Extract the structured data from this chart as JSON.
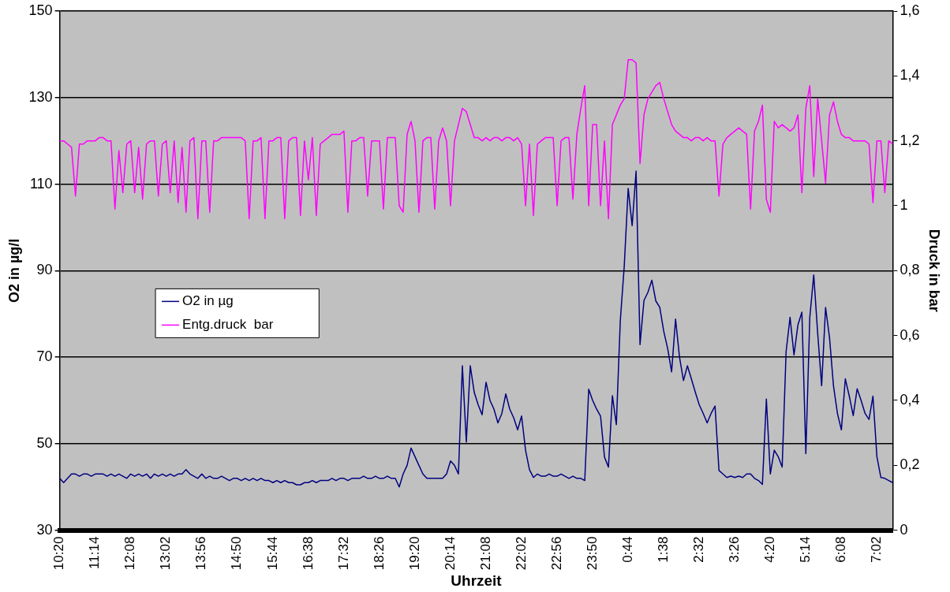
{
  "chart_data": {
    "type": "line",
    "xlabel": "Uhrzeit",
    "ylabel": "O2 in µg/l",
    "y2label": "Druck in bar",
    "categories": [
      "10:20",
      null,
      null,
      null,
      null,
      null,
      null,
      null,
      null,
      "11:14",
      null,
      null,
      null,
      null,
      null,
      null,
      null,
      null,
      "12:08",
      null,
      null,
      null,
      null,
      null,
      null,
      null,
      null,
      "13:02",
      null,
      null,
      null,
      null,
      null,
      null,
      null,
      null,
      "13:56",
      null,
      null,
      null,
      null,
      null,
      null,
      null,
      null,
      "14:50",
      null,
      null,
      null,
      null,
      null,
      null,
      null,
      null,
      "15:44",
      null,
      null,
      null,
      null,
      null,
      null,
      null,
      null,
      "16:38",
      null,
      null,
      null,
      null,
      null,
      null,
      null,
      null,
      "17:32",
      null,
      null,
      null,
      null,
      null,
      null,
      null,
      null,
      "18:26",
      null,
      null,
      null,
      null,
      null,
      null,
      null,
      null,
      "19:20",
      null,
      null,
      null,
      null,
      null,
      null,
      null,
      null,
      "20:14",
      null,
      null,
      null,
      null,
      null,
      null,
      null,
      null,
      "21:08",
      null,
      null,
      null,
      null,
      null,
      null,
      null,
      null,
      "22:02",
      null,
      null,
      null,
      null,
      null,
      null,
      null,
      null,
      "22:56",
      null,
      null,
      null,
      null,
      null,
      null,
      null,
      null,
      "23:50",
      null,
      null,
      null,
      null,
      null,
      null,
      null,
      null,
      "0:44",
      null,
      null,
      null,
      null,
      null,
      null,
      null,
      null,
      "1:38",
      null,
      null,
      null,
      null,
      null,
      null,
      null,
      null,
      "2:32",
      null,
      null,
      null,
      null,
      null,
      null,
      null,
      null,
      "3:26",
      null,
      null,
      null,
      null,
      null,
      null,
      null,
      null,
      "4:20",
      null,
      null,
      null,
      null,
      null,
      null,
      null,
      null,
      "5:14",
      null,
      null,
      null,
      null,
      null,
      null,
      null,
      null,
      "6:08",
      null,
      null,
      null,
      null,
      null,
      null,
      null,
      null,
      "7:02",
      null,
      null,
      null,
      null
    ],
    "ylim": [
      30,
      150
    ],
    "yticks": [
      30,
      50,
      70,
      90,
      110,
      130,
      150
    ],
    "y2lim": [
      0,
      1.6
    ],
    "y2ticks": [
      {
        "value": 0,
        "label": "0"
      },
      {
        "value": 0.2,
        "label": "0,2"
      },
      {
        "value": 0.4,
        "label": "0,4"
      },
      {
        "value": 0.6,
        "label": "0,6"
      },
      {
        "value": 0.8,
        "label": "0,8"
      },
      {
        "value": 1,
        "label": "1"
      },
      {
        "value": 1.2,
        "label": "1,2"
      },
      {
        "value": 1.4,
        "label": "1,4"
      },
      {
        "value": 1.6,
        "label": "1,6"
      }
    ],
    "grid": "y",
    "legend": "left",
    "marker": "none",
    "series": [
      {
        "name": "O2 in µg",
        "color": "#000080",
        "values": [
          42,
          41,
          42,
          43,
          43,
          42.5,
          43,
          43,
          42.5,
          43,
          43,
          43,
          42.5,
          43,
          42.5,
          43,
          42.5,
          42,
          43,
          42.5,
          43,
          42.5,
          43,
          42,
          43,
          42.5,
          43,
          42.5,
          43,
          42.5,
          43,
          43,
          44,
          43,
          42.5,
          42,
          43,
          42,
          42.5,
          42,
          42,
          42.5,
          42,
          41.5,
          42,
          42,
          41.5,
          42,
          41.5,
          42,
          41.5,
          42,
          41.5,
          41.5,
          41,
          41.5,
          41,
          41.5,
          41,
          41,
          40.5,
          40.5,
          41,
          41,
          41.5,
          41,
          41.5,
          41.5,
          41.5,
          42,
          41.5,
          42,
          42,
          41.5,
          42,
          42,
          42,
          42.5,
          42,
          42,
          42.5,
          42,
          42,
          42.5,
          42,
          42,
          40,
          43,
          45,
          49,
          47,
          45,
          43,
          42,
          42,
          42,
          42,
          42,
          43,
          46,
          45,
          43,
          68,
          50.4,
          68,
          61.9,
          59,
          56.7,
          64.2,
          60,
          58,
          54.8,
          57,
          61.5,
          58,
          56,
          53.2,
          56.4,
          48.5,
          44,
          42.2,
          43,
          42.5,
          42.5,
          43,
          42.5,
          42.5,
          43,
          42.5,
          42,
          42.5,
          42,
          42,
          41.5,
          62.6,
          60,
          58,
          56.4,
          46.9,
          44.6,
          61.1,
          54.4,
          78.4,
          91,
          109,
          100.4,
          113,
          72.9,
          83.1,
          85,
          87.8,
          83,
          81.5,
          76,
          72,
          66.6,
          78.8,
          70,
          64.6,
          68,
          65,
          61.9,
          59,
          57,
          54.8,
          57,
          58.7,
          43.8,
          43,
          42.2,
          42.5,
          42.2,
          42.5,
          42.2,
          43,
          43,
          42,
          41.5,
          40.6,
          60.3,
          43,
          48.5,
          47,
          44.6,
          71.3,
          79.2,
          70.5,
          77.5,
          80.4,
          47.7,
          79.2,
          89,
          75.5,
          63.4,
          81.5,
          74.5,
          63.4,
          57,
          53.2,
          65,
          61,
          56.5,
          62.7,
          60,
          57,
          55.6,
          61,
          47,
          42.2,
          42,
          41.5,
          41
        ]
      },
      {
        "name": "Entg.druck  bar",
        "color": "#ff00ff",
        "axis": "y2",
        "values": [
          1.2,
          1.2,
          1.19,
          1.18,
          1.03,
          1.19,
          1.19,
          1.2,
          1.2,
          1.2,
          1.21,
          1.21,
          1.2,
          1.2,
          0.99,
          1.17,
          1.04,
          1.19,
          1.2,
          1.04,
          1.18,
          1.02,
          1.19,
          1.2,
          1.2,
          1.03,
          1.19,
          1.2,
          1.04,
          1.2,
          1.01,
          1.18,
          0.98,
          1.2,
          1.21,
          0.96,
          1.2,
          1.2,
          0.98,
          1.2,
          1.2,
          1.21,
          1.21,
          1.21,
          1.21,
          1.21,
          1.21,
          1.2,
          0.96,
          1.2,
          1.2,
          1.21,
          0.96,
          1.2,
          1.2,
          1.21,
          1.21,
          0.96,
          1.2,
          1.21,
          1.21,
          0.97,
          1.2,
          1.08,
          1.21,
          0.97,
          1.19,
          1.2,
          1.21,
          1.22,
          1.22,
          1.22,
          1.23,
          0.98,
          1.2,
          1.2,
          1.21,
          1.21,
          1.03,
          1.2,
          1.2,
          1.2,
          0.99,
          1.21,
          1.21,
          1.21,
          1.0,
          0.98,
          1.22,
          1.26,
          1.2,
          0.98,
          1.2,
          1.21,
          1.21,
          0.99,
          1.2,
          1.24,
          1.2,
          1.0,
          1.2,
          1.25,
          1.3,
          1.29,
          1.25,
          1.21,
          1.21,
          1.2,
          1.21,
          1.2,
          1.21,
          1.21,
          1.2,
          1.21,
          1.21,
          1.2,
          1.21,
          1.19,
          1.0,
          1.19,
          0.97,
          1.19,
          1.2,
          1.21,
          1.21,
          1.21,
          1.0,
          1.2,
          1.21,
          1.21,
          1.02,
          1.22,
          1.3,
          1.37,
          1.0,
          1.25,
          1.25,
          1.0,
          1.2,
          0.96,
          1.25,
          1.28,
          1.31,
          1.33,
          1.45,
          1.45,
          1.44,
          1.13,
          1.28,
          1.33,
          1.35,
          1.37,
          1.38,
          1.33,
          1.29,
          1.25,
          1.23,
          1.22,
          1.21,
          1.21,
          1.2,
          1.21,
          1.21,
          1.2,
          1.21,
          1.2,
          1.2,
          1.03,
          1.19,
          1.21,
          1.22,
          1.23,
          1.24,
          1.23,
          1.22,
          0.99,
          1.23,
          1.26,
          1.31,
          1.02,
          0.98,
          1.26,
          1.24,
          1.25,
          1.24,
          1.23,
          1.24,
          1.28,
          1.04,
          1.3,
          1.37,
          1.09,
          1.33,
          1.2,
          1.07,
          1.28,
          1.32,
          1.26,
          1.22,
          1.21,
          1.21,
          1.2,
          1.2,
          1.2,
          1.2,
          1.19,
          1.01,
          1.2,
          1.2,
          1.04,
          1.2,
          1.19
        ]
      }
    ]
  }
}
